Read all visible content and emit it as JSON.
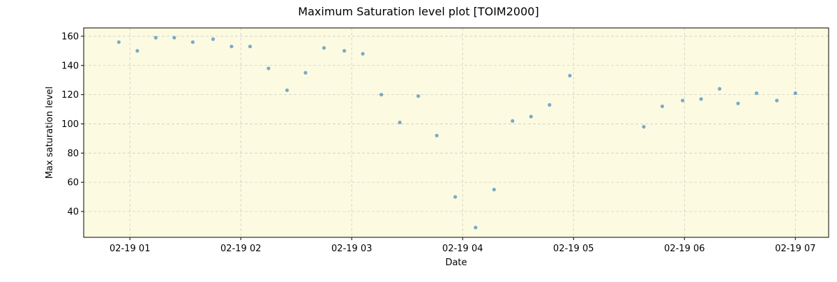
{
  "chart_data": {
    "type": "scatter",
    "title": "Maximum Saturation level plot [TOIM2000]",
    "xlabel": "Date",
    "ylabel": "Max saturation level",
    "date": "02-19",
    "xlim": [
      "00:35",
      "07:18"
    ],
    "ylim": [
      22.3,
      165.7
    ],
    "x_ticks": [
      "02-19 01",
      "02-19 02",
      "02-19 03",
      "02-19 04",
      "02-19 05",
      "02-19 06",
      "02-19 07"
    ],
    "x_tick_hours": [
      1,
      2,
      3,
      4,
      5,
      6,
      7
    ],
    "y_ticks": [
      40,
      60,
      80,
      100,
      120,
      140,
      160
    ],
    "grid": true,
    "colors": {
      "background": "#fcfbe2",
      "point": "#1f77b4",
      "grid": "#b0b0b0"
    },
    "points": [
      {
        "x": "00:54",
        "y": 156
      },
      {
        "x": "01:04",
        "y": 150
      },
      {
        "x": "01:14",
        "y": 159
      },
      {
        "x": "01:24",
        "y": 159
      },
      {
        "x": "01:34",
        "y": 156
      },
      {
        "x": "01:45",
        "y": 158
      },
      {
        "x": "01:55",
        "y": 153
      },
      {
        "x": "02:05",
        "y": 153
      },
      {
        "x": "02:15",
        "y": 138
      },
      {
        "x": "02:25",
        "y": 123
      },
      {
        "x": "02:35",
        "y": 135
      },
      {
        "x": "02:45",
        "y": 152
      },
      {
        "x": "02:56",
        "y": 150
      },
      {
        "x": "03:06",
        "y": 148
      },
      {
        "x": "03:16",
        "y": 120
      },
      {
        "x": "03:26",
        "y": 101
      },
      {
        "x": "03:36",
        "y": 119
      },
      {
        "x": "03:46",
        "y": 92
      },
      {
        "x": "03:56",
        "y": 50
      },
      {
        "x": "04:07",
        "y": 29
      },
      {
        "x": "04:17",
        "y": 55
      },
      {
        "x": "04:27",
        "y": 102
      },
      {
        "x": "04:37",
        "y": 105
      },
      {
        "x": "04:47",
        "y": 113
      },
      {
        "x": "04:58",
        "y": 133
      },
      {
        "x": "05:38",
        "y": 98
      },
      {
        "x": "05:48",
        "y": 112
      },
      {
        "x": "05:59",
        "y": 116
      },
      {
        "x": "06:09",
        "y": 117
      },
      {
        "x": "06:19",
        "y": 124
      },
      {
        "x": "06:29",
        "y": 114
      },
      {
        "x": "06:39",
        "y": 121
      },
      {
        "x": "06:50",
        "y": 116
      },
      {
        "x": "07:00",
        "y": 121
      }
    ]
  }
}
